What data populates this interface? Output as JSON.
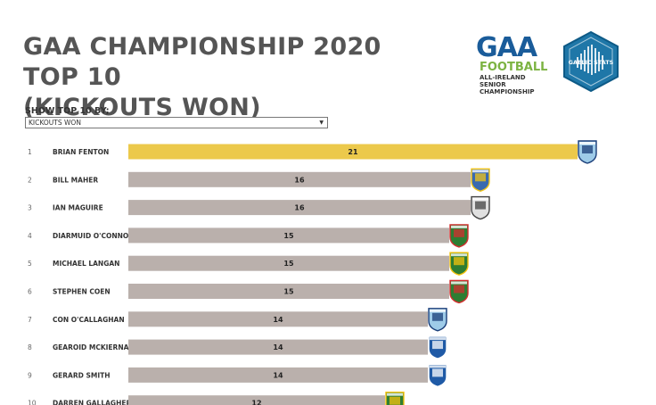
{
  "title": {
    "line1": "GAA CHAMPIONSHIP 2020 TOP 10",
    "line2": "(KICKOUTS WON)"
  },
  "logos": {
    "gaa": {
      "word": "GAA",
      "football": "FOOTBALL",
      "sub1": "ALL-IRELAND SENIOR",
      "sub2": "CHAMPIONSHIP"
    },
    "stats": {
      "text": "GAELIC STATS"
    }
  },
  "filter": {
    "label": "SHOW TOP 10 BY;",
    "selected": "KICKOUTS WON"
  },
  "colors": {
    "top_bar": "#ecc94b",
    "bar": "#bab0ac"
  },
  "chart_data": {
    "type": "bar",
    "orientation": "horizontal",
    "metric": "KICKOUTS WON",
    "ranks": [
      "1",
      "2",
      "3",
      "4",
      "5",
      "6",
      "7",
      "8",
      "9",
      "10"
    ],
    "categories": [
      "BRIAN FENTON",
      "BILL MAHER",
      "IAN MAGUIRE",
      "DIARMUID O'CONNOR",
      "MICHAEL LANGAN",
      "STEPHEN COEN",
      "CON O'CALLAGHAN",
      "GEAROID MCKIERNAN",
      "GERARD SMITH",
      "DARREN GALLAGHER"
    ],
    "values": [
      21,
      16,
      16,
      15,
      15,
      15,
      14,
      14,
      14,
      12
    ],
    "labels": [
      "21",
      "16",
      "16",
      "15",
      "15",
      "15",
      "14",
      "14",
      "14",
      "12"
    ],
    "crests": [
      "dublin-crest",
      "tipperary-crest",
      "cork-crest",
      "mayo-crest",
      "donegal-crest",
      "mayo-crest",
      "dublin-crest",
      "cavan-crest",
      "cavan-crest",
      "donegal-crest"
    ],
    "xlim": [
      0,
      21
    ],
    "grid": false,
    "legend": "none"
  }
}
